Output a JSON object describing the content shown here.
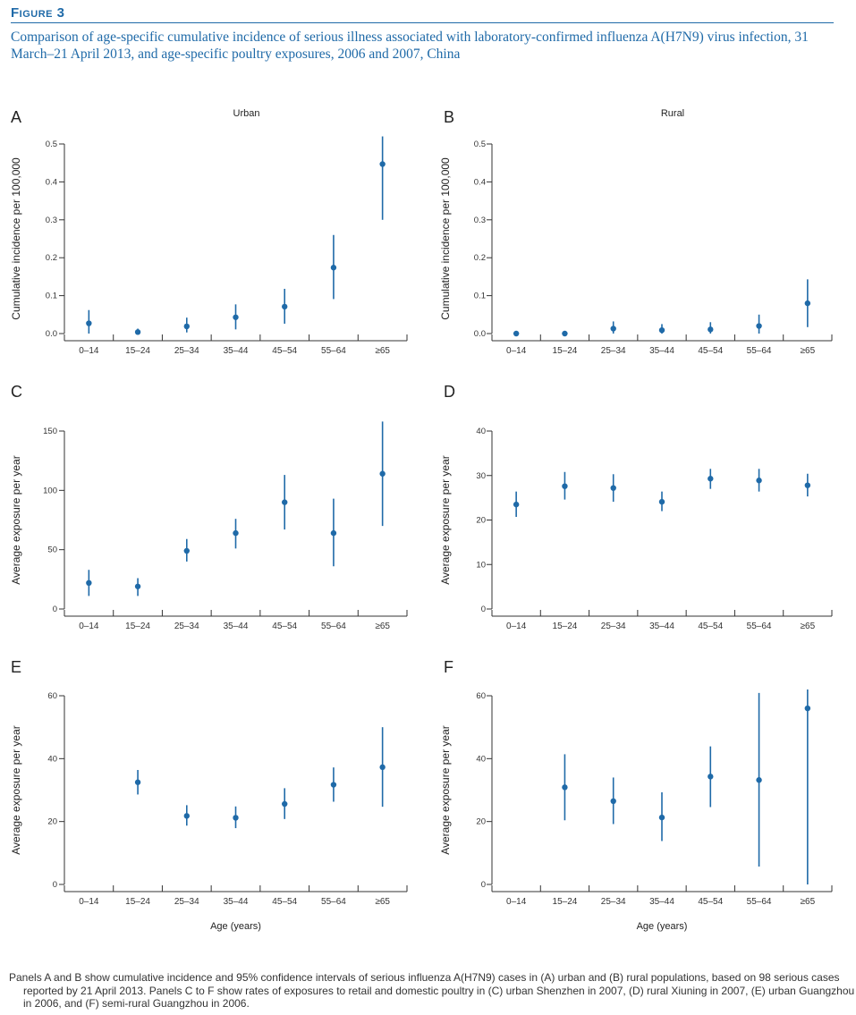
{
  "figure": {
    "label": "Figure 3",
    "title": "Comparison of age-specific cumulative incidence of serious illness associated with laboratory-confirmed influenza A(H7N9) virus infection, 31 March–21 April 2013, and age-specific poultry exposures, 2006 and 2007, China",
    "caption": "Panels A and B show cumulative incidence and 95% confidence intervals of serious influenza A(H7N9) cases in (A) urban and (B) rural populations, based on 98 serious cases reported by 21 April 2013. Panels C to F show rates of exposures to retail and domestic poultry in (C) urban Shenzhen in 2007, (D) rural Xiuning in 2007, (E) urban Guangzhou in 2006, and (F) semi-rural Guangzhou in 2006."
  },
  "colors": {
    "accent": "#1f6aa8",
    "axis": "#333333"
  },
  "chart_data": [
    {
      "panel": "A",
      "type": "scatter",
      "subtitle": "Urban",
      "categories": [
        "0–14",
        "15–24",
        "25–34",
        "35–44",
        "45–54",
        "55–64",
        "≥65"
      ],
      "values": [
        0.027,
        0.004,
        0.019,
        0.043,
        0.071,
        0.174,
        0.447
      ],
      "ci_low": [
        0.0,
        0.0,
        0.003,
        0.011,
        0.026,
        0.091,
        0.3
      ],
      "ci_high": [
        0.062,
        0.013,
        0.042,
        0.077,
        0.118,
        0.26,
        0.52
      ],
      "ylabel": "Cumulative incidence per 100,000",
      "xlabel": "",
      "ylim": [
        0,
        0.5
      ],
      "yticks": [
        0.0,
        0.1,
        0.2,
        0.3,
        0.4,
        0.5
      ],
      "ytick_labels": [
        "0.0",
        "0.1",
        "0.2",
        "0.3",
        "0.4",
        "0.5"
      ]
    },
    {
      "panel": "B",
      "type": "scatter",
      "subtitle": "Rural",
      "categories": [
        "0–14",
        "15–24",
        "25–34",
        "35–44",
        "45–54",
        "55–64",
        "≥65"
      ],
      "values": [
        0.0,
        0.0,
        0.013,
        0.009,
        0.011,
        0.02,
        0.08
      ],
      "ci_low": [
        0.0,
        0.0,
        0.0,
        0.0,
        0.0,
        0.0,
        0.017
      ],
      "ci_high": [
        0.0,
        0.0,
        0.032,
        0.025,
        0.03,
        0.05,
        0.143
      ],
      "ylabel": "Cumulative incidence per 100,000",
      "xlabel": "",
      "ylim": [
        0,
        0.5
      ],
      "yticks": [
        0.0,
        0.1,
        0.2,
        0.3,
        0.4,
        0.5
      ],
      "ytick_labels": [
        "0.0",
        "0.1",
        "0.2",
        "0.3",
        "0.4",
        "0.5"
      ]
    },
    {
      "panel": "C",
      "type": "scatter",
      "subtitle": "",
      "categories": [
        "0–14",
        "15–24",
        "25–34",
        "35–44",
        "45–54",
        "55–64",
        "≥65"
      ],
      "values": [
        22,
        19,
        49,
        64,
        90,
        64,
        114
      ],
      "ci_low": [
        11,
        11,
        40,
        51,
        67,
        36,
        70
      ],
      "ci_high": [
        33,
        26,
        59,
        76,
        113,
        93,
        158
      ],
      "ylabel": "Average exposure per year",
      "xlabel": "",
      "ylim": [
        0,
        150
      ],
      "yticks": [
        0,
        50,
        100,
        150
      ],
      "ytick_labels": [
        "0",
        "50",
        "100",
        "150"
      ]
    },
    {
      "panel": "D",
      "type": "scatter",
      "subtitle": "",
      "categories": [
        "0–14",
        "15–24",
        "25–34",
        "35–44",
        "45–54",
        "55–64",
        "≥65"
      ],
      "values": [
        23.5,
        27.6,
        27.2,
        24.1,
        29.3,
        28.9,
        27.8
      ],
      "ci_low": [
        20.7,
        24.6,
        24.1,
        22.0,
        27.0,
        26.4,
        25.3
      ],
      "ci_high": [
        26.4,
        30.8,
        30.3,
        26.4,
        31.5,
        31.5,
        30.4
      ],
      "ylabel": "Average exposure per year",
      "xlabel": "",
      "ylim": [
        0,
        40
      ],
      "yticks": [
        0,
        10,
        20,
        30,
        40
      ],
      "ytick_labels": [
        "0",
        "10",
        "20",
        "30",
        "40"
      ]
    },
    {
      "panel": "E",
      "type": "scatter",
      "subtitle": "",
      "categories": [
        "0–14",
        "15–24",
        "25–34",
        "35–44",
        "45–54",
        "55–64",
        "≥65"
      ],
      "values": [
        null,
        32.5,
        21.8,
        21.2,
        25.6,
        31.7,
        37.3
      ],
      "ci_low": [
        null,
        28.6,
        18.7,
        17.9,
        20.8,
        26.3,
        24.7
      ],
      "ci_high": [
        null,
        36.4,
        25.2,
        24.8,
        30.6,
        37.2,
        50.0
      ],
      "ylabel": "Average exposure per year",
      "xlabel": "Age (years)",
      "ylim": [
        0,
        60
      ],
      "yticks": [
        0,
        20,
        40,
        60
      ],
      "ytick_labels": [
        "0",
        "20",
        "40",
        "60"
      ]
    },
    {
      "panel": "F",
      "type": "scatter",
      "subtitle": "",
      "categories": [
        "0–14",
        "15–24",
        "25–34",
        "35–44",
        "45–54",
        "55–64",
        "≥65"
      ],
      "values": [
        null,
        30.9,
        26.5,
        21.3,
        34.3,
        33.2,
        56.0
      ],
      "ci_low": [
        null,
        20.4,
        19.2,
        13.8,
        24.6,
        5.7,
        0.0
      ],
      "ci_high": [
        null,
        41.4,
        34.0,
        29.3,
        43.9,
        60.9,
        62.0
      ],
      "ylabel": "Average exposure per year",
      "xlabel": "Age (years)",
      "ylim": [
        0,
        60
      ],
      "yticks": [
        0,
        20,
        40,
        60
      ],
      "ytick_labels": [
        "0",
        "20",
        "40",
        "60"
      ]
    }
  ]
}
